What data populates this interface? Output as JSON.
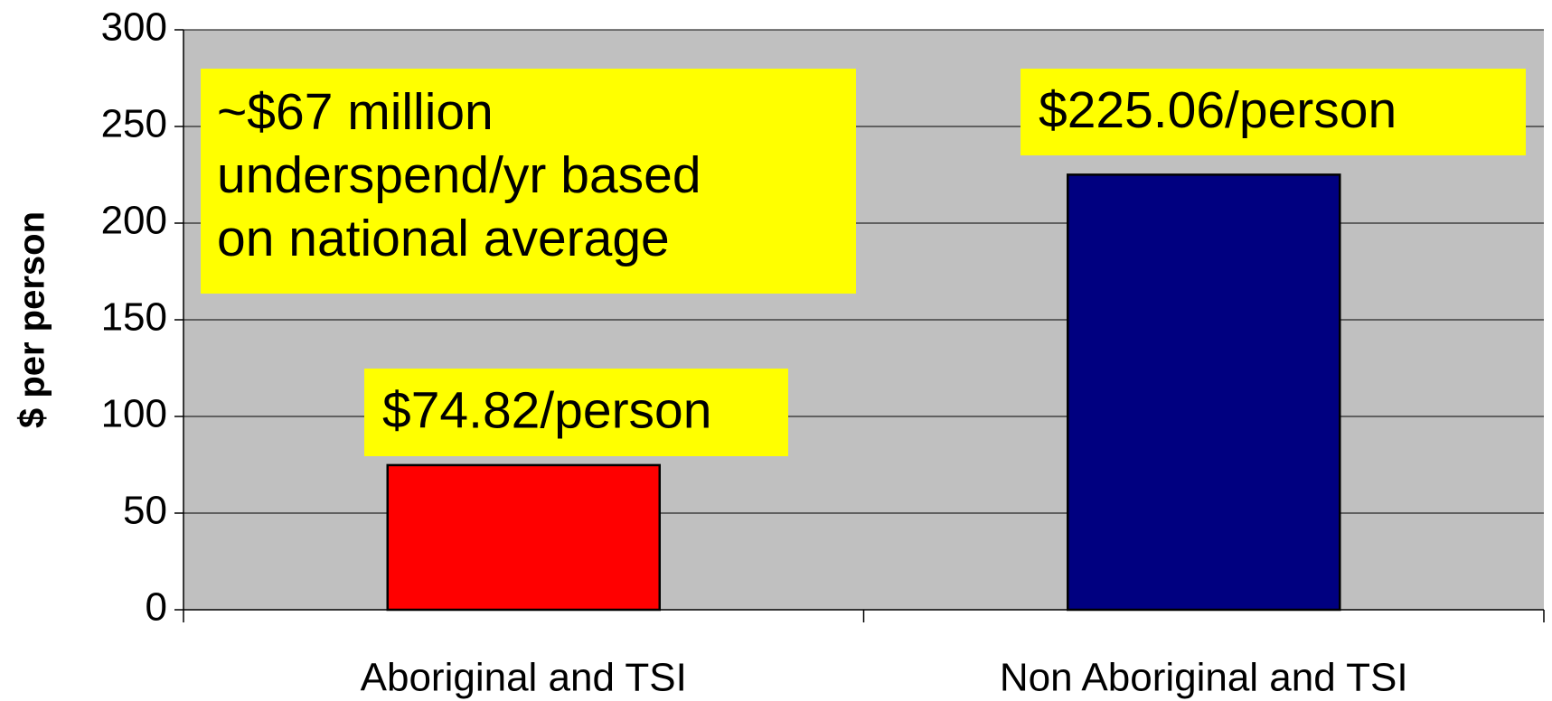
{
  "chart_data": {
    "type": "bar",
    "y_axis_label": "$ per person",
    "categories": [
      "Aboriginal and TSI",
      "Non Aboriginal and TSI"
    ],
    "values": [
      74.82,
      225.06
    ],
    "value_labels": [
      "$74.82/person",
      "$225.06/person"
    ],
    "colors": [
      "#ff0000",
      "#000080"
    ],
    "annotation": [
      "~$67 million",
      "underspend/yr based",
      "on national average"
    ],
    "ylim": [
      0,
      300
    ],
    "yticks": [
      0,
      50,
      100,
      150,
      200,
      250,
      300
    ],
    "grid": true
  }
}
